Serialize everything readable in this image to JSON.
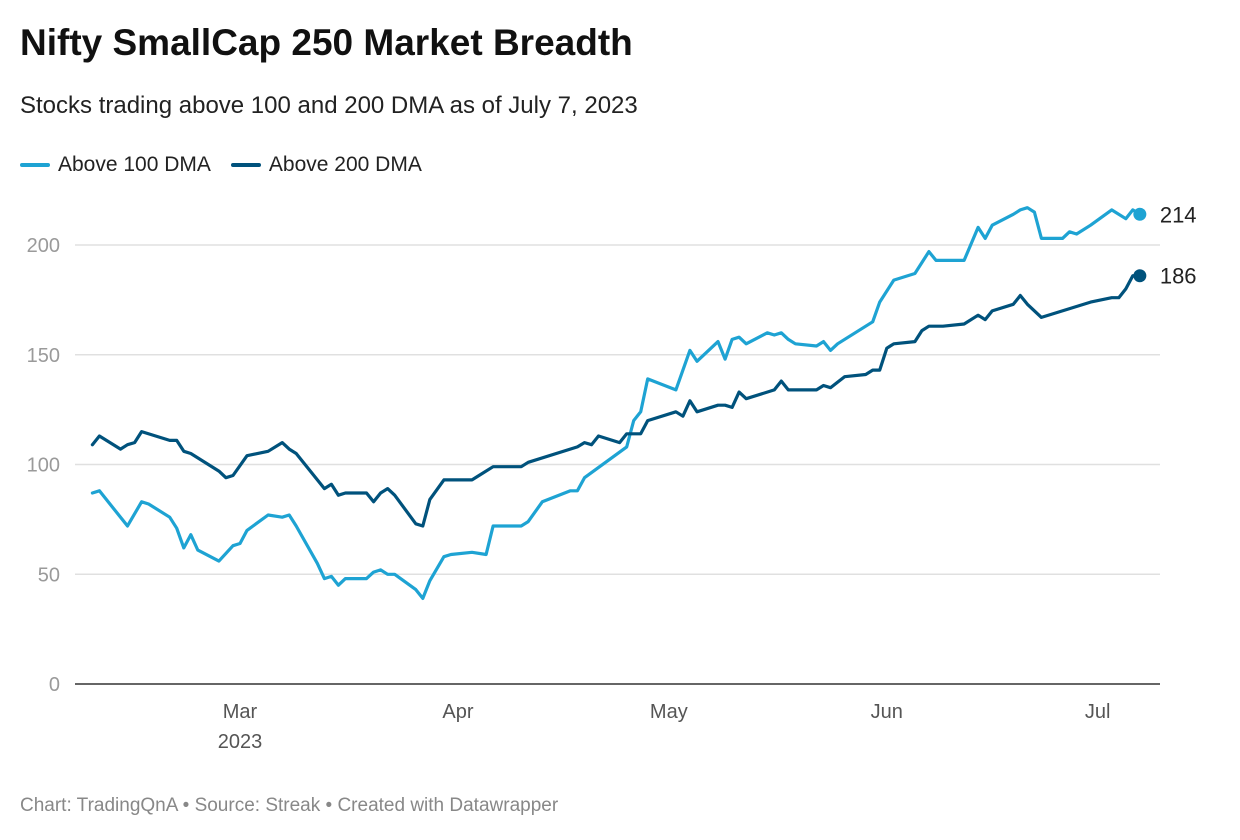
{
  "chart_data": {
    "type": "line",
    "title": "Nifty SmallCap 250 Market Breadth",
    "subtitle": "Stocks trading above 100 and 200 DMA as of July 7, 2023",
    "footer": "Chart: TradingQnA • Source: Streak • Created with Datawrapper",
    "xlabel": "",
    "ylabel": "",
    "ylim": [
      0,
      220
    ],
    "yticks": [
      "0",
      "50",
      "100",
      "150",
      "200"
    ],
    "xticks": [
      {
        "date": "2023-03-01",
        "label": "Mar",
        "sublabel": "2023"
      },
      {
        "date": "2023-04-01",
        "label": "Apr"
      },
      {
        "date": "2023-05-01",
        "label": "May"
      },
      {
        "date": "2023-06-01",
        "label": "Jun"
      },
      {
        "date": "2023-07-01",
        "label": "Jul"
      }
    ],
    "grid": true,
    "legend_position": "top-left",
    "series": [
      {
        "name": "Above 100 DMA",
        "color": "#1ea3d3",
        "end_label": "214",
        "points": [
          [
            "2023-02-08",
            87
          ],
          [
            "2023-02-09",
            88
          ],
          [
            "2023-02-13",
            72
          ],
          [
            "2023-02-15",
            83
          ],
          [
            "2023-02-16",
            82
          ],
          [
            "2023-02-19",
            76
          ],
          [
            "2023-02-20",
            71
          ],
          [
            "2023-02-21",
            62
          ],
          [
            "2023-02-22",
            68
          ],
          [
            "2023-02-23",
            61
          ],
          [
            "2023-02-26",
            56
          ],
          [
            "2023-02-28",
            63
          ],
          [
            "2023-03-01",
            64
          ],
          [
            "2023-03-02",
            70
          ],
          [
            "2023-03-05",
            77
          ],
          [
            "2023-03-07",
            76
          ],
          [
            "2023-03-08",
            77
          ],
          [
            "2023-03-09",
            72
          ],
          [
            "2023-03-12",
            55
          ],
          [
            "2023-03-13",
            48
          ],
          [
            "2023-03-14",
            49
          ],
          [
            "2023-03-15",
            45
          ],
          [
            "2023-03-16",
            48
          ],
          [
            "2023-03-19",
            48
          ],
          [
            "2023-03-20",
            51
          ],
          [
            "2023-03-21",
            52
          ],
          [
            "2023-03-22",
            50
          ],
          [
            "2023-03-23",
            50
          ],
          [
            "2023-03-26",
            43
          ],
          [
            "2023-03-27",
            39
          ],
          [
            "2023-03-28",
            47
          ],
          [
            "2023-03-30",
            58
          ],
          [
            "2023-03-31",
            59
          ],
          [
            "2023-04-03",
            60
          ],
          [
            "2023-04-05",
            59
          ],
          [
            "2023-04-06",
            72
          ],
          [
            "2023-04-09",
            72
          ],
          [
            "2023-04-10",
            72
          ],
          [
            "2023-04-11",
            74
          ],
          [
            "2023-04-13",
            83
          ],
          [
            "2023-04-17",
            88
          ],
          [
            "2023-04-18",
            88
          ],
          [
            "2023-04-19",
            94
          ],
          [
            "2023-04-22",
            101
          ],
          [
            "2023-04-25",
            108
          ],
          [
            "2023-04-26",
            120
          ],
          [
            "2023-04-27",
            124
          ],
          [
            "2023-04-28",
            139
          ],
          [
            "2023-05-02",
            134
          ],
          [
            "2023-05-04",
            152
          ],
          [
            "2023-05-05",
            147
          ],
          [
            "2023-05-08",
            156
          ],
          [
            "2023-05-09",
            148
          ],
          [
            "2023-05-10",
            157
          ],
          [
            "2023-05-11",
            158
          ],
          [
            "2023-05-12",
            155
          ],
          [
            "2023-05-15",
            160
          ],
          [
            "2023-05-16",
            159
          ],
          [
            "2023-05-17",
            160
          ],
          [
            "2023-05-18",
            157
          ],
          [
            "2023-05-19",
            155
          ],
          [
            "2023-05-22",
            154
          ],
          [
            "2023-05-23",
            156
          ],
          [
            "2023-05-24",
            152
          ],
          [
            "2023-05-25",
            155
          ],
          [
            "2023-05-30",
            165
          ],
          [
            "2023-05-31",
            174
          ],
          [
            "2023-06-02",
            184
          ],
          [
            "2023-06-05",
            187
          ],
          [
            "2023-06-07",
            197
          ],
          [
            "2023-06-08",
            193
          ],
          [
            "2023-06-12",
            193
          ],
          [
            "2023-06-14",
            208
          ],
          [
            "2023-06-15",
            203
          ],
          [
            "2023-06-16",
            209
          ],
          [
            "2023-06-19",
            214
          ],
          [
            "2023-06-20",
            216
          ],
          [
            "2023-06-21",
            217
          ],
          [
            "2023-06-22",
            215
          ],
          [
            "2023-06-23",
            203
          ],
          [
            "2023-06-26",
            203
          ],
          [
            "2023-06-27",
            206
          ],
          [
            "2023-06-28",
            205
          ],
          [
            "2023-06-30",
            209
          ],
          [
            "2023-07-03",
            216
          ],
          [
            "2023-07-05",
            212
          ],
          [
            "2023-07-06",
            216
          ],
          [
            "2023-07-07",
            214
          ]
        ]
      },
      {
        "name": "Above 200 DMA",
        "color": "#00527c",
        "end_label": "186",
        "points": [
          [
            "2023-02-08",
            109
          ],
          [
            "2023-02-09",
            113
          ],
          [
            "2023-02-12",
            107
          ],
          [
            "2023-02-13",
            109
          ],
          [
            "2023-02-14",
            110
          ],
          [
            "2023-02-15",
            115
          ],
          [
            "2023-02-19",
            111
          ],
          [
            "2023-02-20",
            111
          ],
          [
            "2023-02-21",
            106
          ],
          [
            "2023-02-22",
            105
          ],
          [
            "2023-02-26",
            97
          ],
          [
            "2023-02-27",
            94
          ],
          [
            "2023-02-28",
            95
          ],
          [
            "2023-03-02",
            104
          ],
          [
            "2023-03-05",
            106
          ],
          [
            "2023-03-07",
            110
          ],
          [
            "2023-03-08",
            107
          ],
          [
            "2023-03-09",
            105
          ],
          [
            "2023-03-13",
            89
          ],
          [
            "2023-03-14",
            91
          ],
          [
            "2023-03-15",
            86
          ],
          [
            "2023-03-16",
            87
          ],
          [
            "2023-03-19",
            87
          ],
          [
            "2023-03-20",
            83
          ],
          [
            "2023-03-21",
            87
          ],
          [
            "2023-03-22",
            89
          ],
          [
            "2023-03-23",
            86
          ],
          [
            "2023-03-26",
            73
          ],
          [
            "2023-03-27",
            72
          ],
          [
            "2023-03-28",
            84
          ],
          [
            "2023-03-30",
            93
          ],
          [
            "2023-04-03",
            93
          ],
          [
            "2023-04-04",
            95
          ],
          [
            "2023-04-06",
            99
          ],
          [
            "2023-04-10",
            99
          ],
          [
            "2023-04-11",
            101
          ],
          [
            "2023-04-18",
            108
          ],
          [
            "2023-04-19",
            110
          ],
          [
            "2023-04-20",
            109
          ],
          [
            "2023-04-21",
            113
          ],
          [
            "2023-04-24",
            110
          ],
          [
            "2023-04-25",
            114
          ],
          [
            "2023-04-27",
            114
          ],
          [
            "2023-04-28",
            120
          ],
          [
            "2023-05-02",
            124
          ],
          [
            "2023-05-03",
            122
          ],
          [
            "2023-05-04",
            129
          ],
          [
            "2023-05-05",
            124
          ],
          [
            "2023-05-08",
            127
          ],
          [
            "2023-05-09",
            127
          ],
          [
            "2023-05-10",
            126
          ],
          [
            "2023-05-11",
            133
          ],
          [
            "2023-05-12",
            130
          ],
          [
            "2023-05-16",
            134
          ],
          [
            "2023-05-17",
            138
          ],
          [
            "2023-05-18",
            134
          ],
          [
            "2023-05-22",
            134
          ],
          [
            "2023-05-23",
            136
          ],
          [
            "2023-05-24",
            135
          ],
          [
            "2023-05-26",
            140
          ],
          [
            "2023-05-29",
            141
          ],
          [
            "2023-05-30",
            143
          ],
          [
            "2023-05-31",
            143
          ],
          [
            "2023-06-01",
            153
          ],
          [
            "2023-06-02",
            155
          ],
          [
            "2023-06-05",
            156
          ],
          [
            "2023-06-06",
            161
          ],
          [
            "2023-06-07",
            163
          ],
          [
            "2023-06-09",
            163
          ],
          [
            "2023-06-12",
            164
          ],
          [
            "2023-06-14",
            168
          ],
          [
            "2023-06-15",
            166
          ],
          [
            "2023-06-16",
            170
          ],
          [
            "2023-06-19",
            173
          ],
          [
            "2023-06-20",
            177
          ],
          [
            "2023-06-21",
            173
          ],
          [
            "2023-06-23",
            167
          ],
          [
            "2023-06-30",
            174
          ],
          [
            "2023-07-03",
            176
          ],
          [
            "2023-07-04",
            176
          ],
          [
            "2023-07-05",
            180
          ],
          [
            "2023-07-06",
            186
          ],
          [
            "2023-07-07",
            186
          ]
        ]
      }
    ]
  }
}
